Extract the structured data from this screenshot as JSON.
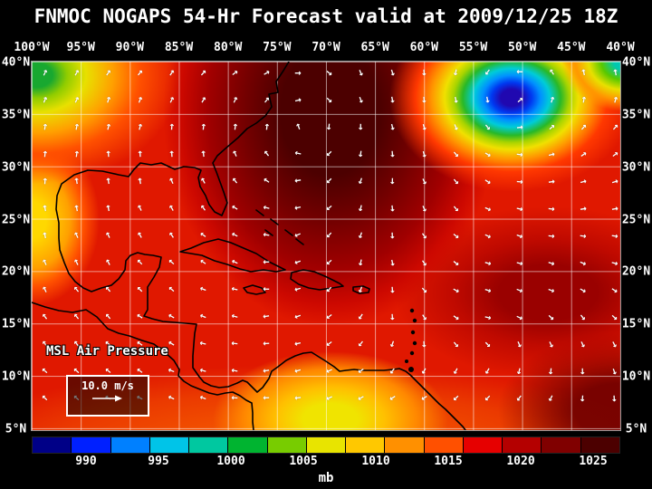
{
  "header": {
    "title": "FNMOC NOGAPS 54-Hr Forecast valid at 2009/12/25 18Z"
  },
  "map": {
    "lon_labels": [
      "100°W",
      "95°W",
      "90°W",
      "85°W",
      "80°W",
      "75°W",
      "70°W",
      "65°W",
      "60°W",
      "55°W",
      "50°W",
      "45°W",
      "40°W"
    ],
    "lat_labels": [
      "40°N",
      "35°N",
      "30°N",
      "25°N",
      "20°N",
      "15°N",
      "10°N",
      "5°N"
    ],
    "overlay_label": "MSL Air Pressure",
    "wind_legend_label": "10.0 m/s"
  },
  "colorbar": {
    "units_label": "mb",
    "tick_labels": [
      "990",
      "995",
      "1000",
      "1005",
      "1010",
      "1015",
      "1020",
      "1025"
    ],
    "segment_colors": [
      "#000087",
      "#0020ff",
      "#0080ff",
      "#00c4e8",
      "#00c8a0",
      "#00b430",
      "#78cc00",
      "#e8e400",
      "#ffc800",
      "#ff9000",
      "#ff5000",
      "#e60000",
      "#b40000",
      "#800000",
      "#4c0000"
    ]
  },
  "chart_data": {
    "type": "heatmap",
    "title": "FNMOC NOGAPS 54-Hr Forecast valid at 2009/12/25 18Z",
    "field": "MSL Air Pressure",
    "units": "mb",
    "scale_ticks": [
      990,
      995,
      1000,
      1005,
      1010,
      1015,
      1020,
      1025
    ],
    "lon_range": [
      "100°W",
      "40°W"
    ],
    "lat_range": [
      "5°N",
      "40°N"
    ],
    "features": [
      {
        "name": "closed-low",
        "approx_location": "50°W 37°N",
        "approx_value_mb": 990
      },
      {
        "name": "high-pressure-area",
        "approx_location": "73°W 38°N",
        "approx_value_mb": 1026
      }
    ],
    "wind_reference": "10.0 m/s",
    "legend_position": "bottom"
  }
}
